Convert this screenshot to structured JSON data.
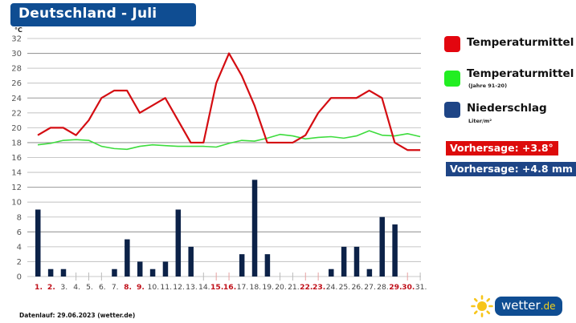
{
  "header": {
    "title": "Deutschland - Juli"
  },
  "axis": {
    "unit_label": "°C"
  },
  "legend": {
    "items": [
      {
        "label": "Temperaturmittel",
        "sub": "",
        "color": "#e3060f"
      },
      {
        "label": "Temperaturmittel",
        "sub": "(Jahre 91-20)",
        "color": "#22ee22"
      },
      {
        "label": "Niederschlag",
        "sub": "Liter/m²",
        "color": "#1e4586"
      }
    ]
  },
  "forecast": {
    "temp_label": "Vorhersage: +3.8°",
    "temp_color": "#dd0b0b",
    "precip_label": "Vorhersage: +4.8 mm",
    "precip_color": "#1e4586"
  },
  "footer": {
    "note": "Datenlauf: 29.06.2023 (wetter.de)"
  },
  "logo": {
    "name": "wetter",
    "tld": ".de"
  },
  "chart_data": {
    "type": "line+bar",
    "title": "Deutschland - Juli",
    "xlabel": "",
    "ylabel": "°C",
    "ylim": [
      0,
      32
    ],
    "yticks": [
      0,
      2,
      4,
      6,
      8,
      10,
      12,
      14,
      16,
      18,
      20,
      22,
      24,
      26,
      28,
      30,
      32
    ],
    "grid": true,
    "legend_position": "right",
    "categories": [
      "1.",
      "2.",
      "3.",
      "4.",
      "5.",
      "6.",
      "7.",
      "8.",
      "9.",
      "10.",
      "11.",
      "12.",
      "13.",
      "14.",
      "15.",
      "16.",
      "17.",
      "18.",
      "19.",
      "20.",
      "21.",
      "22.",
      "23.",
      "24.",
      "25.",
      "26.",
      "27.",
      "28.",
      "29.",
      "30.",
      "31."
    ],
    "weekend_days": [
      1,
      2,
      8,
      9,
      15,
      16,
      22,
      23,
      29,
      30
    ],
    "weekday_label_color": "#444444",
    "weekend_label_color": "#c0101a",
    "series": [
      {
        "name": "Temperaturmittel",
        "type": "line",
        "color": "#d40d12",
        "values": [
          19,
          20,
          20,
          19,
          21,
          24,
          25,
          25,
          22,
          23,
          24,
          21,
          18,
          18,
          26,
          30,
          27,
          23,
          18,
          18,
          18,
          19,
          22,
          24,
          24,
          24,
          25,
          24,
          18,
          17,
          17
        ]
      },
      {
        "name": "Temperaturmittel (Jahre 91-20)",
        "type": "line",
        "color": "#3ddc3d",
        "values": [
          17.7,
          17.9,
          18.3,
          18.4,
          18.3,
          17.5,
          17.2,
          17.1,
          17.5,
          17.7,
          17.6,
          17.5,
          17.5,
          17.5,
          17.4,
          17.9,
          18.3,
          18.2,
          18.6,
          19.1,
          18.9,
          18.5,
          18.7,
          18.8,
          18.6,
          18.9,
          19.6,
          19.0,
          18.9,
          19.2,
          18.8
        ]
      },
      {
        "name": "Niederschlag (Liter/m²)",
        "type": "bar",
        "color": "#0c2248",
        "values": [
          9,
          1,
          1,
          0,
          0,
          0,
          1,
          5,
          2,
          1,
          2,
          9,
          4,
          0,
          0,
          0,
          3,
          13,
          3,
          0,
          0,
          0,
          0,
          1,
          4,
          4,
          1,
          8,
          7,
          0,
          0
        ]
      }
    ],
    "annotations": [
      "Vorhersage: +3.8°",
      "Vorhersage: +4.8 mm"
    ]
  }
}
